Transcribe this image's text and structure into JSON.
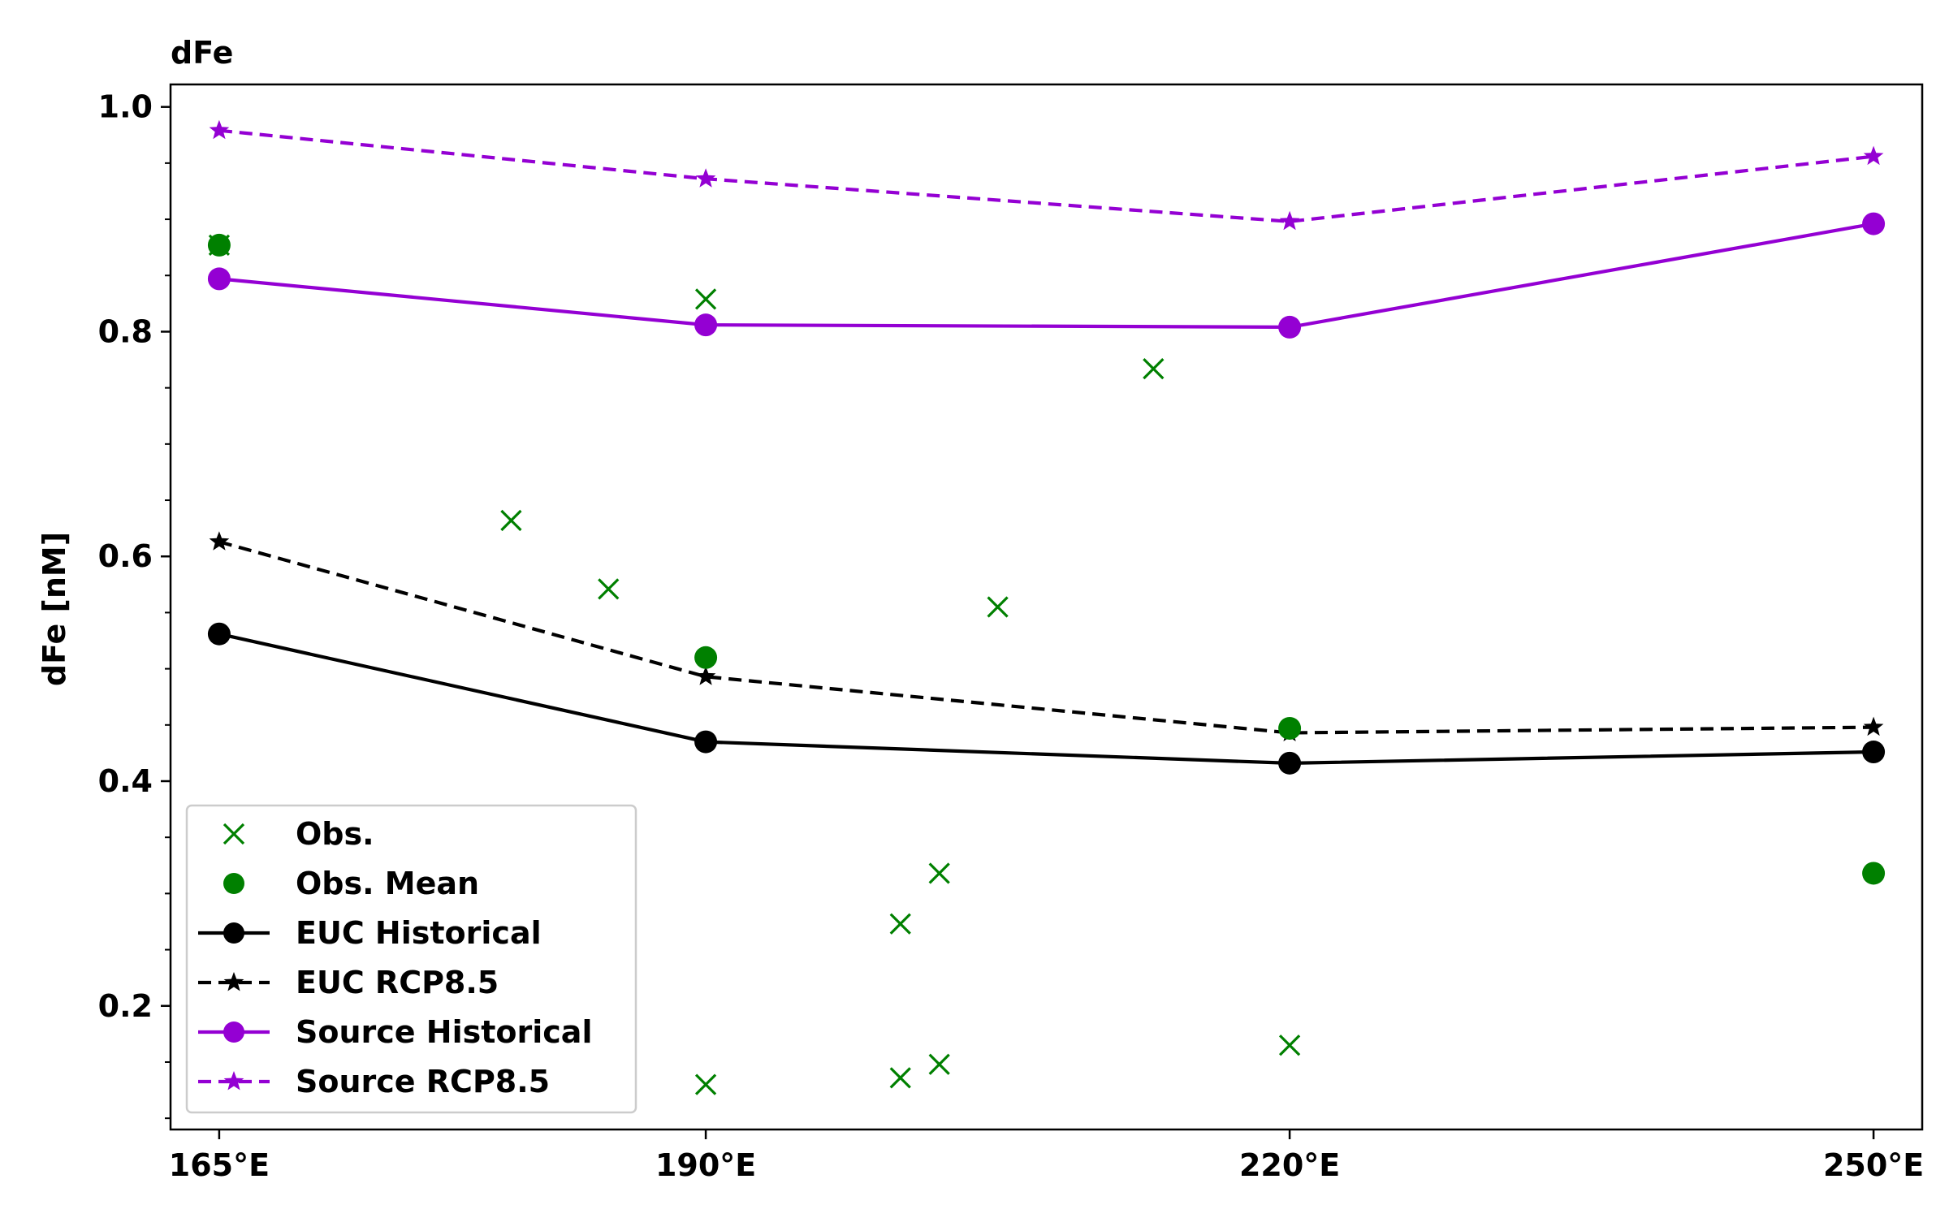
{
  "chart_data": {
    "type": "line",
    "title": "dFe",
    "xlabel": "",
    "ylabel": "dFe [nM]",
    "xlim": [
      162.5,
      252.5
    ],
    "ylim": [
      0.09,
      1.02
    ],
    "x_ticks": [
      {
        "value": 165,
        "label": "165°E"
      },
      {
        "value": 190,
        "label": "190°E"
      },
      {
        "value": 220,
        "label": "220°E"
      },
      {
        "value": 250,
        "label": "250°E"
      }
    ],
    "y_ticks": [
      {
        "value": 0.2,
        "label": "0.2"
      },
      {
        "value": 0.4,
        "label": "0.4"
      },
      {
        "value": 0.6,
        "label": "0.6"
      },
      {
        "value": 0.8,
        "label": "0.8"
      },
      {
        "value": 1.0,
        "label": "1.0"
      }
    ],
    "y_minor_ticks": [
      0.1,
      0.15,
      0.25,
      0.3,
      0.35,
      0.45,
      0.5,
      0.55,
      0.65,
      0.7,
      0.75,
      0.85,
      0.9,
      0.95
    ],
    "grid": false,
    "legend_position": "lower-left",
    "series": [
      {
        "name": "Obs.",
        "kind": "scatter",
        "marker": "x",
        "color": "#008000",
        "points": [
          {
            "x": 165,
            "y": 0.877
          },
          {
            "x": 180,
            "y": 0.632
          },
          {
            "x": 185,
            "y": 0.571
          },
          {
            "x": 190,
            "y": 0.829
          },
          {
            "x": 190,
            "y": 0.13
          },
          {
            "x": 200,
            "y": 0.273
          },
          {
            "x": 200,
            "y": 0.136
          },
          {
            "x": 202,
            "y": 0.318
          },
          {
            "x": 202,
            "y": 0.148
          },
          {
            "x": 205,
            "y": 0.555
          },
          {
            "x": 213,
            "y": 0.767
          },
          {
            "x": 220,
            "y": 0.165
          }
        ]
      },
      {
        "name": "Obs. Mean",
        "kind": "scatter",
        "marker": "circle",
        "color": "#008000",
        "points": [
          {
            "x": 165,
            "y": 0.877
          },
          {
            "x": 190,
            "y": 0.51
          },
          {
            "x": 220,
            "y": 0.447
          },
          {
            "x": 250,
            "y": 0.318
          }
        ]
      },
      {
        "name": "EUC Historical",
        "kind": "line",
        "marker": "circle",
        "color": "#000000",
        "dash": "solid",
        "points": [
          {
            "x": 165,
            "y": 0.531
          },
          {
            "x": 190,
            "y": 0.435
          },
          {
            "x": 220,
            "y": 0.416
          },
          {
            "x": 250,
            "y": 0.426
          }
        ]
      },
      {
        "name": "EUC RCP8.5",
        "kind": "line",
        "marker": "star",
        "color": "#000000",
        "dash": "dashed",
        "points": [
          {
            "x": 165,
            "y": 0.613
          },
          {
            "x": 190,
            "y": 0.493
          },
          {
            "x": 220,
            "y": 0.443
          },
          {
            "x": 250,
            "y": 0.448
          }
        ]
      },
      {
        "name": "Source Historical",
        "kind": "line",
        "marker": "circle",
        "color": "#9400D3",
        "dash": "solid",
        "points": [
          {
            "x": 165,
            "y": 0.847
          },
          {
            "x": 190,
            "y": 0.806
          },
          {
            "x": 220,
            "y": 0.804
          },
          {
            "x": 250,
            "y": 0.896
          }
        ]
      },
      {
        "name": "Source RCP8.5",
        "kind": "line",
        "marker": "star",
        "color": "#9400D3",
        "dash": "dashed",
        "points": [
          {
            "x": 165,
            "y": 0.979
          },
          {
            "x": 190,
            "y": 0.936
          },
          {
            "x": 220,
            "y": 0.898
          },
          {
            "x": 250,
            "y": 0.956
          }
        ]
      }
    ]
  }
}
